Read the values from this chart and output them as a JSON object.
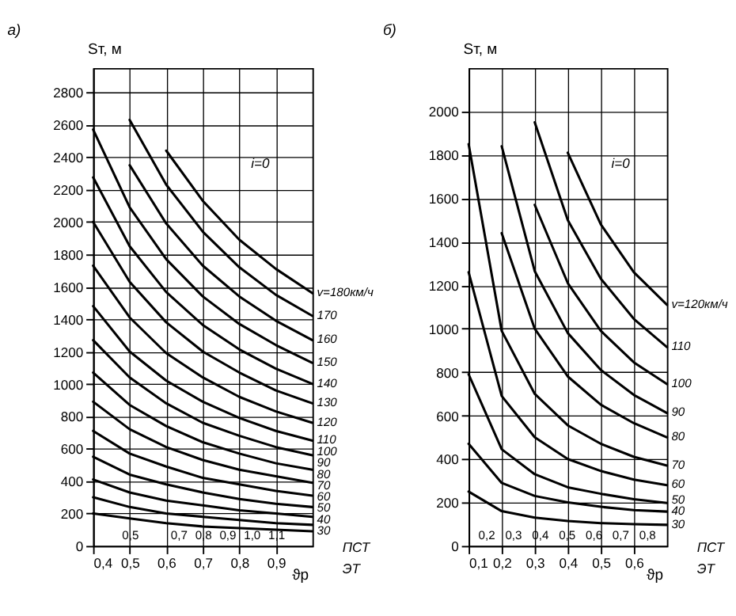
{
  "chart_data": [
    {
      "type": "line",
      "title": "а)",
      "ylabel": "Sт, м",
      "xlabel": "ϑр",
      "annotations": [
        "i=0",
        "ПСТ",
        "ЭТ"
      ],
      "x": [
        0.4,
        0.5,
        0.6,
        0.7,
        0.8,
        0.9,
        1.0
      ],
      "xlim": [
        0.4,
        1.0
      ],
      "xticks": [
        {
          "value": 0.4,
          "label": "0,4"
        },
        {
          "value": 0.5,
          "label": "0,5"
        },
        {
          "value": 0.6,
          "label": "0,6"
        },
        {
          "value": 0.7,
          "label": "0,7"
        },
        {
          "value": 0.8,
          "label": "0,8"
        },
        {
          "value": 0.9,
          "label": "0,9"
        }
      ],
      "ylim": [
        0,
        2950
      ],
      "yticks": [
        0,
        200,
        400,
        600,
        800,
        1000,
        1200,
        1400,
        1600,
        1800,
        2000,
        2200,
        2400,
        2600,
        2800
      ],
      "x2lim": [
        0.35,
        1.25
      ],
      "x2ticks": [
        {
          "value": 0.5,
          "label": "0,5"
        },
        {
          "value": 0.7,
          "label": "0,7"
        },
        {
          "value": 0.8,
          "label": "0,8"
        },
        {
          "value": 0.9,
          "label": "0,9"
        },
        {
          "value": 1.0,
          "label": "1,0"
        },
        {
          "value": 1.1,
          "label": "1,1"
        }
      ],
      "grid": true,
      "legend": false,
      "marker": "none",
      "line_style": "solid",
      "series": [
        {
          "name": "v=180км/ч",
          "color": "#000000",
          "values": [
            null,
            null,
            2440,
            2130,
            1890,
            1710,
            1560
          ]
        },
        {
          "name": "170",
          "color": "#000000",
          "values": [
            null,
            2630,
            2230,
            1940,
            1720,
            1550,
            1420
          ]
        },
        {
          "name": "160",
          "color": "#000000",
          "values": [
            null,
            2350,
            1990,
            1730,
            1540,
            1390,
            1270
          ]
        },
        {
          "name": "150",
          "color": "#000000",
          "values": [
            2570,
            2090,
            1770,
            1540,
            1370,
            1240,
            1130
          ]
        },
        {
          "name": "140",
          "color": "#000000",
          "values": [
            2275,
            1850,
            1567,
            1364,
            1213,
            1094,
            1000
          ]
        },
        {
          "name": "130",
          "color": "#000000",
          "values": [
            2000,
            1630,
            1380,
            1200,
            1070,
            960,
            880
          ]
        },
        {
          "name": "120",
          "color": "#000000",
          "values": [
            1730,
            1410,
            1190,
            1040,
            920,
            830,
            760
          ]
        },
        {
          "name": "110",
          "color": "#000000",
          "values": [
            1480,
            1200,
            1020,
            890,
            790,
            710,
            650
          ]
        },
        {
          "name": "100",
          "color": "#000000",
          "values": [
            1270,
            1040,
            880,
            760,
            680,
            610,
            560
          ]
        },
        {
          "name": "90",
          "color": "#000000",
          "values": [
            1070,
            870,
            740,
            640,
            570,
            510,
            470
          ]
        },
        {
          "name": "80",
          "color": "#000000",
          "values": [
            890,
            720,
            610,
            530,
            470,
            430,
            390
          ]
        },
        {
          "name": "70",
          "color": "#000000",
          "values": [
            710,
            570,
            490,
            420,
            380,
            340,
            310
          ]
        },
        {
          "name": "60",
          "color": "#000000",
          "values": [
            550,
            440,
            380,
            330,
            290,
            260,
            240
          ]
        },
        {
          "name": "50",
          "color": "#000000",
          "values": [
            410,
            330,
            280,
            250,
            220,
            200,
            180
          ]
        },
        {
          "name": "40",
          "color": "#000000",
          "values": [
            300,
            240,
            200,
            180,
            160,
            140,
            130
          ]
        },
        {
          "name": "30",
          "color": "#000000",
          "values": [
            200,
            170,
            140,
            120,
            110,
            100,
            90
          ]
        }
      ]
    },
    {
      "type": "line",
      "title": "б)",
      "ylabel": "Sт, м",
      "xlabel": "ϑр",
      "annotations": [
        "i=0",
        "ПСТ",
        "ЭТ"
      ],
      "x": [
        0.1,
        0.2,
        0.3,
        0.4,
        0.5,
        0.6,
        0.7
      ],
      "xlim": [
        0.1,
        0.7
      ],
      "xticks": [
        {
          "value": 0.1,
          "label": "0,1"
        },
        {
          "value": 0.2,
          "label": "0,2"
        },
        {
          "value": 0.3,
          "label": "0,3"
        },
        {
          "value": 0.4,
          "label": "0,4"
        },
        {
          "value": 0.5,
          "label": "0,5"
        },
        {
          "value": 0.6,
          "label": "0,6"
        }
      ],
      "ylim": [
        0,
        2200
      ],
      "yticks": [
        0,
        200,
        400,
        600,
        800,
        1000,
        1200,
        1400,
        1600,
        1800,
        2000
      ],
      "x2lim": [
        0.135,
        0.875
      ],
      "x2ticks": [
        {
          "value": 0.2,
          "label": "0,2"
        },
        {
          "value": 0.3,
          "label": "0,3"
        },
        {
          "value": 0.4,
          "label": "0,4"
        },
        {
          "value": 0.5,
          "label": "0,5"
        },
        {
          "value": 0.6,
          "label": "0,6"
        },
        {
          "value": 0.7,
          "label": "0,7"
        },
        {
          "value": 0.8,
          "label": "0,8"
        }
      ],
      "grid": true,
      "legend": false,
      "marker": "none",
      "line_style": "solid",
      "series": [
        {
          "name": "v=120км/ч",
          "color": "#000000",
          "values": [
            null,
            null,
            null,
            1810,
            1480,
            1260,
            1110
          ]
        },
        {
          "name": "110",
          "color": "#000000",
          "values": [
            null,
            null,
            1950,
            1500,
            1230,
            1045,
            915
          ]
        },
        {
          "name": "100",
          "color": "#000000",
          "values": [
            null,
            null,
            1570,
            1210,
            990,
            845,
            745
          ]
        },
        {
          "name": "90",
          "color": "#000000",
          "values": [
            null,
            1840,
            1265,
            980,
            810,
            695,
            612
          ]
        },
        {
          "name": "80",
          "color": "#000000",
          "values": [
            null,
            1440,
            1000,
            780,
            650,
            565,
            500
          ]
        },
        {
          "name": "70",
          "color": "#000000",
          "values": [
            1850,
            990,
            700,
            555,
            470,
            410,
            370
          ]
        },
        {
          "name": "60",
          "color": "#000000",
          "values": [
            1260,
            690,
            500,
            400,
            345,
            305,
            280
          ]
        },
        {
          "name": "50",
          "color": "#000000",
          "values": [
            790,
            445,
            330,
            270,
            240,
            215,
            198
          ]
        },
        {
          "name": "40",
          "color": "#000000",
          "values": [
            470,
            290,
            230,
            200,
            180,
            165,
            158
          ]
        },
        {
          "name": "30",
          "color": "#000000",
          "values": [
            250,
            160,
            130,
            115,
            105,
            100,
            97
          ]
        }
      ]
    }
  ]
}
